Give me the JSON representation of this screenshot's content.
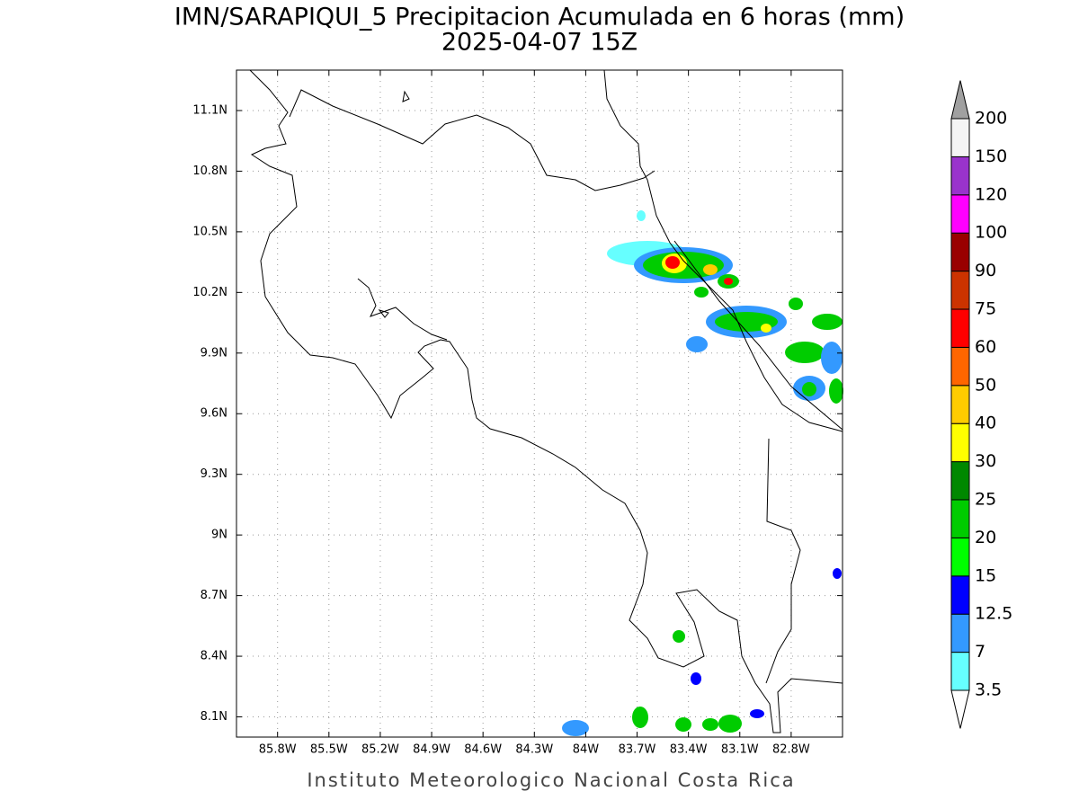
{
  "title": "IMN/SARAPIQUI_5 Precipitacion Acumulada en 6 horas (mm)",
  "subtitle": "2025-04-07 15Z",
  "map": {
    "xlim": [
      -86.04,
      -82.5
    ],
    "ylim": [
      8.0,
      11.3
    ],
    "grid": true,
    "xticks": [
      {
        "value": -85.8,
        "label": "85.8W"
      },
      {
        "value": -85.5,
        "label": "85.5W"
      },
      {
        "value": -85.2,
        "label": "85.2W"
      },
      {
        "value": -84.9,
        "label": "84.9W"
      },
      {
        "value": -84.6,
        "label": "84.6W"
      },
      {
        "value": -84.3,
        "label": "84.3W"
      },
      {
        "value": -84.0,
        "label": "84W"
      },
      {
        "value": -83.7,
        "label": "83.7W"
      },
      {
        "value": -83.4,
        "label": "83.4W"
      },
      {
        "value": -83.1,
        "label": "83.1W"
      },
      {
        "value": -82.8,
        "label": "82.8W"
      }
    ],
    "yticks": [
      {
        "value": 8.1,
        "label": "8.1N"
      },
      {
        "value": 8.4,
        "label": "8.4N"
      },
      {
        "value": 8.7,
        "label": "8.7N"
      },
      {
        "value": 9.0,
        "label": "9N"
      },
      {
        "value": 9.3,
        "label": "9.3N"
      },
      {
        "value": 9.6,
        "label": "9.6N"
      },
      {
        "value": 9.9,
        "label": "9.9N"
      },
      {
        "value": 10.2,
        "label": "10.2N"
      },
      {
        "value": 10.5,
        "label": "10.5N"
      },
      {
        "value": 10.8,
        "label": "10.8N"
      },
      {
        "value": 11.1,
        "label": "11.1N"
      }
    ]
  },
  "colorbar": {
    "levels": [
      3.5,
      7,
      12.5,
      15,
      20,
      25,
      30,
      40,
      50,
      60,
      75,
      90,
      100,
      120,
      150,
      200
    ],
    "colors": [
      "#66ffff",
      "#3399ff",
      "#0000ff",
      "#00ff00",
      "#00cc00",
      "#008800",
      "#ffff00",
      "#ffcc00",
      "#ff6600",
      "#ff0000",
      "#cc3300",
      "#990000",
      "#ff00ff",
      "#9933cc",
      "#f4f4f4"
    ],
    "under_color": "#ffffff",
    "over_color": "#a0a0a0"
  },
  "footer": "Instituto Meteorologico Nacional Costa Rica"
}
